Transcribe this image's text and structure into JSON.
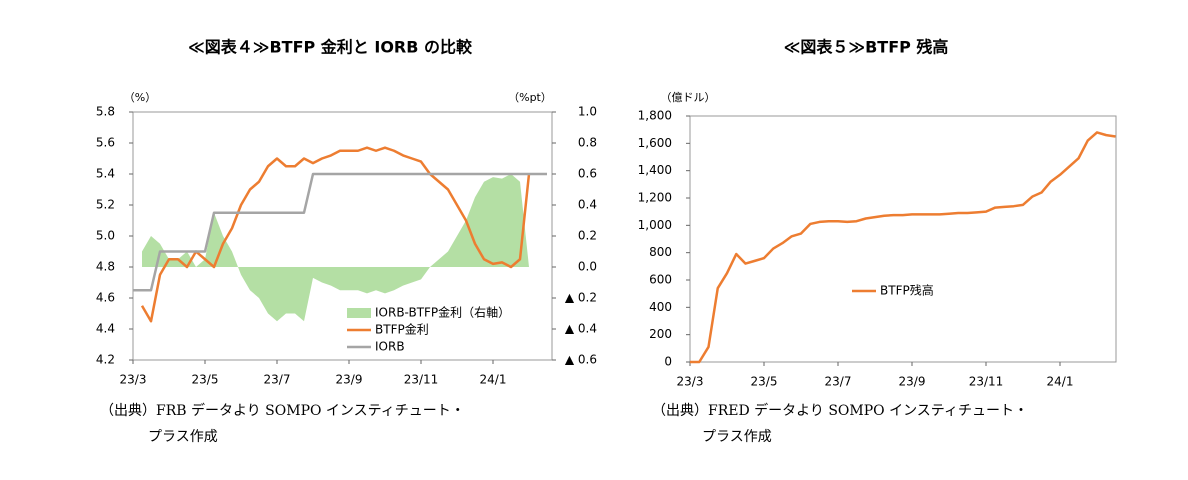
{
  "chart_data": [
    {
      "type": "combo",
      "title": "≪図表４≫BTFP 金利と IORB の比較",
      "y_unit": "（%）",
      "y2_unit": "（%pt）",
      "categories": [
        "23/3",
        null,
        null,
        null,
        null,
        null,
        null,
        null,
        "23/5",
        null,
        null,
        null,
        null,
        null,
        null,
        null,
        "23/7",
        null,
        null,
        null,
        null,
        null,
        null,
        null,
        "23/9",
        null,
        null,
        null,
        null,
        null,
        null,
        null,
        "23/11",
        null,
        null,
        null,
        null,
        null,
        null,
        null,
        "24/1",
        null,
        null,
        null,
        null,
        null,
        null
      ],
      "ylim": [
        4.2,
        5.8
      ],
      "yticks": [
        4.2,
        4.4,
        4.6,
        4.8,
        {
          "value": 5,
          "label": "5.0"
        },
        5.2,
        5.4,
        5.6,
        5.8
      ],
      "y2lim": [
        -0.6,
        1.0
      ],
      "y2ticks": [
        {
          "value": -0.6,
          "label": "▲ 0.6"
        },
        {
          "value": -0.4,
          "label": "▲ 0.4"
        },
        {
          "value": -0.2,
          "label": "▲ 0.2"
        },
        {
          "value": 0,
          "label": "0.0"
        },
        0.2,
        0.4,
        0.6,
        0.8,
        {
          "value": 1,
          "label": "1.0"
        }
      ],
      "series": [
        {
          "name": "IORB-BTFP金利（右軸）",
          "color": "#b4dfa4",
          "kind": "area",
          "axis": "y2",
          "values": [
            null,
            0.1,
            0.2,
            0.15,
            0.05,
            0.05,
            0.1,
            0.0,
            0.05,
            0.35,
            0.2,
            0.1,
            -0.05,
            -0.15,
            -0.2,
            -0.3,
            -0.35,
            -0.3,
            -0.3,
            -0.35,
            -0.07,
            -0.1,
            -0.12,
            -0.15,
            -0.15,
            -0.15,
            -0.17,
            -0.15,
            -0.17,
            -0.15,
            -0.12,
            -0.1,
            -0.08,
            0.0,
            0.05,
            0.1,
            0.2,
            0.3,
            0.45,
            0.55,
            0.58,
            0.57,
            0.6,
            0.55,
            0.0,
            null,
            null
          ]
        },
        {
          "name": "BTFP金利",
          "color": "#ed7d31",
          "kind": "line",
          "values": [
            null,
            4.55,
            4.45,
            4.75,
            4.85,
            4.85,
            4.8,
            4.9,
            4.85,
            4.8,
            4.95,
            5.05,
            5.2,
            5.3,
            5.35,
            5.45,
            5.5,
            5.45,
            5.45,
            5.5,
            5.47,
            5.5,
            5.52,
            5.55,
            5.55,
            5.55,
            5.57,
            5.55,
            5.57,
            5.55,
            5.52,
            5.5,
            5.48,
            5.4,
            5.35,
            5.3,
            5.2,
            5.1,
            4.95,
            4.85,
            4.82,
            4.83,
            4.8,
            4.85,
            5.4,
            null,
            null
          ]
        },
        {
          "name": "IORB",
          "color": "#a5a5a5",
          "kind": "line",
          "values": [
            4.65,
            4.65,
            4.65,
            4.9,
            4.9,
            4.9,
            4.9,
            4.9,
            4.9,
            5.15,
            5.15,
            5.15,
            5.15,
            5.15,
            5.15,
            5.15,
            5.15,
            5.15,
            5.15,
            5.15,
            5.4,
            5.4,
            5.4,
            5.4,
            5.4,
            5.4,
            5.4,
            5.4,
            5.4,
            5.4,
            5.4,
            5.4,
            5.4,
            5.4,
            5.4,
            5.4,
            5.4,
            5.4,
            5.4,
            5.4,
            5.4,
            5.4,
            5.4,
            5.4,
            5.4,
            5.4,
            5.4
          ]
        }
      ],
      "source": [
        "（出典）FRB データより SOMPO インスティチュート・",
        "プラス作成"
      ]
    },
    {
      "type": "line",
      "title": "≪図表５≫BTFP 残高",
      "y_unit": "（億ドル）",
      "categories": [
        "23/3",
        null,
        null,
        null,
        null,
        null,
        null,
        null,
        "23/5",
        null,
        null,
        null,
        null,
        null,
        null,
        null,
        "23/7",
        null,
        null,
        null,
        null,
        null,
        null,
        null,
        "23/9",
        null,
        null,
        null,
        null,
        null,
        null,
        null,
        "23/11",
        null,
        null,
        null,
        null,
        null,
        null,
        null,
        "24/1",
        null,
        null,
        null,
        null,
        null,
        null
      ],
      "ylim": [
        0,
        1800
      ],
      "yticks": [
        0,
        200,
        400,
        600,
        800,
        {
          "value": 1000,
          "label": "1,000"
        },
        {
          "value": 1200,
          "label": "1,200"
        },
        {
          "value": 1400,
          "label": "1,400"
        },
        {
          "value": 1600,
          "label": "1,600"
        },
        {
          "value": 1800,
          "label": "1,800"
        }
      ],
      "series": [
        {
          "name": "BTFP残高",
          "color": "#ed7d31",
          "kind": "line",
          "values": [
            0,
            0,
            110,
            540,
            650,
            790,
            720,
            740,
            760,
            830,
            870,
            920,
            940,
            1010,
            1025,
            1030,
            1030,
            1025,
            1030,
            1050,
            1060,
            1070,
            1075,
            1075,
            1080,
            1080,
            1080,
            1080,
            1085,
            1090,
            1090,
            1095,
            1100,
            1130,
            1135,
            1140,
            1150,
            1210,
            1240,
            1320,
            1370,
            1430,
            1490,
            1620,
            1680,
            1660,
            1650
          ]
        }
      ],
      "source": [
        "（出典）FRED データより SOMPO インスティチュート・",
        "プラス作成"
      ]
    }
  ]
}
